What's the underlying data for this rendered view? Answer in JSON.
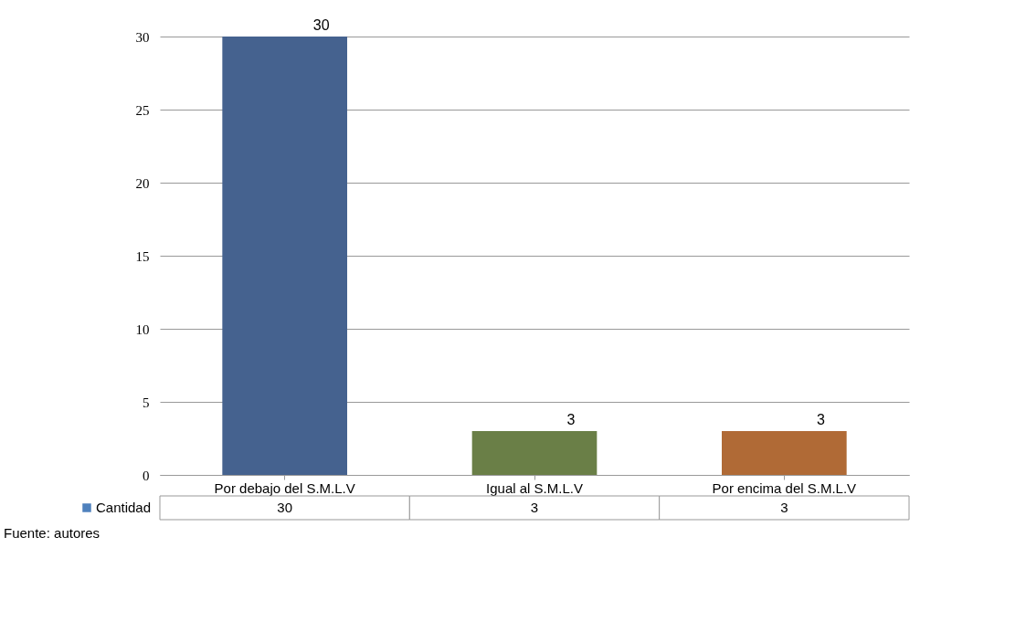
{
  "chart_data": {
    "type": "bar",
    "categories": [
      "Por debajo del S.M.L.V",
      "Igual al S.M.L.V",
      "Por encima del S.M.L.V"
    ],
    "series": [
      {
        "name": "Cantidad",
        "color": "#4f81bd",
        "colors": [
          "#45628f",
          "#6a7f47",
          "#b06a36"
        ],
        "values": [
          30,
          3,
          3
        ]
      }
    ],
    "ylim": [
      0,
      30
    ],
    "yticks": [
      0,
      5,
      10,
      15,
      20,
      25,
      30
    ],
    "grid": "y",
    "data_labels": true,
    "legend": "bottom left",
    "annotations": [
      {
        "text": "30",
        "x": "Por debajo del S.M.L.V",
        "y": 30
      },
      {
        "text": "3",
        "x": "Igual al S.M.L.V",
        "y": 3
      },
      {
        "text": "3",
        "x": "Por encima del S.M.L.V",
        "y": 3
      },
      "Fuente: autores"
    ]
  }
}
